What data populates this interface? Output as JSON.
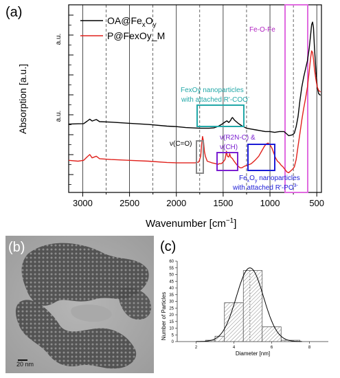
{
  "panel_labels": {
    "a": "(a)",
    "b": "(b)",
    "c": "(c)"
  },
  "panel_a": {
    "legend": [
      {
        "label": "OA@Fe",
        "sub1": "x",
        "mid": "O",
        "sub2": "y",
        "color": "#000000"
      },
      {
        "label": "P@FexOy_M",
        "color": "#e0201b"
      }
    ],
    "ylabel": "Absorption [a.u.]",
    "ytick_labels": [
      "a.u.",
      "a.u."
    ],
    "xlabel": "Wavenumber",
    "xlabel_unit": "[cm",
    "xlabel_sup": "−1",
    "xlabel_close": "]",
    "annotations": {
      "feofe": "Fe-O-Fe",
      "coo_line1": "FexOy nanoparticles",
      "coo_line2": "with attached R'-COO",
      "coo_sup": "-",
      "co": "ν(C=O)",
      "r2nc_line1": "ν(R2N-C) &",
      "r2nc_line2": "ν(CH)",
      "po_line1_a": "Fe",
      "po_line1_b": "x",
      "po_line1_c": "O",
      "po_line1_d": "y",
      "po_line1_e": " nanoparticles",
      "po_line2": "with attached R'-PO",
      "po_sup": "3-"
    },
    "colors": {
      "black": "#000000",
      "red": "#e0201b",
      "teal": "#21a7a7",
      "purple": "#7b1fd1",
      "blue": "#1b1bd6",
      "gray": "#888888",
      "pink": "#e06ae0",
      "magenta_text": "#b020c0"
    }
  },
  "panel_b": {
    "scale_label": "20 nm"
  },
  "chart_data": [
    {
      "type": "line",
      "title": "",
      "xlabel": "Wavenumber [cm−1]",
      "ylabel": "Absorption [a.u.]",
      "xlim": [
        3150,
        450
      ],
      "x_reversed": true,
      "xticks": [
        3000,
        2500,
        2000,
        1500,
        1000,
        500
      ],
      "grid": true,
      "legend_position": "top-left",
      "series": [
        {
          "name": "OA@FexOy",
          "color": "#000000",
          "points": [
            [
              3150,
              2.55
            ],
            [
              3050,
              2.57
            ],
            [
              2990,
              2.58
            ],
            [
              2955,
              2.72
            ],
            [
              2925,
              2.85
            ],
            [
              2900,
              2.74
            ],
            [
              2855,
              2.83
            ],
            [
              2820,
              2.7
            ],
            [
              2700,
              2.67
            ],
            [
              2500,
              2.6
            ],
            [
              2300,
              2.53
            ],
            [
              2100,
              2.43
            ],
            [
              2000,
              2.4
            ],
            [
              1900,
              2.34
            ],
            [
              1750,
              2.3
            ],
            [
              1700,
              2.3
            ],
            [
              1650,
              2.3
            ],
            [
              1600,
              2.32
            ],
            [
              1560,
              2.4
            ],
            [
              1520,
              2.52
            ],
            [
              1480,
              2.68
            ],
            [
              1460,
              2.75
            ],
            [
              1440,
              2.65
            ],
            [
              1420,
              2.78
            ],
            [
              1410,
              2.9
            ],
            [
              1400,
              2.95
            ],
            [
              1380,
              2.8
            ],
            [
              1340,
              2.6
            ],
            [
              1300,
              2.45
            ],
            [
              1250,
              2.3
            ],
            [
              1200,
              2.25
            ],
            [
              1150,
              2.2
            ],
            [
              1100,
              2.15
            ],
            [
              1050,
              2.1
            ],
            [
              1000,
              2.1
            ],
            [
              950,
              2.05
            ],
            [
              900,
              2.1
            ],
            [
              850,
              2.1
            ],
            [
              800,
              1.85
            ],
            [
              760,
              1.9
            ],
            [
              740,
              2.0
            ],
            [
              720,
              2.4
            ],
            [
              700,
              3.0
            ],
            [
              680,
              4.0
            ],
            [
              660,
              4.8
            ],
            [
              640,
              5.4
            ],
            [
              620,
              5.9
            ],
            [
              600,
              6.4
            ],
            [
              580,
              7.2
            ],
            [
              565,
              8.0
            ],
            [
              555,
              8.6
            ],
            [
              545,
              8.75
            ],
            [
              535,
              8.4
            ],
            [
              525,
              7.2
            ],
            [
              510,
              5.9
            ],
            [
              495,
              4.8
            ],
            [
              480,
              4.4
            ],
            [
              460,
              4.3
            ]
          ]
        },
        {
          "name": "P@FexOy_M",
          "color": "#e0201b",
          "points": [
            [
              3150,
              0.35
            ],
            [
              3050,
              0.3
            ],
            [
              2990,
              0.35
            ],
            [
              2955,
              0.55
            ],
            [
              2925,
              0.7
            ],
            [
              2900,
              0.5
            ],
            [
              2855,
              0.6
            ],
            [
              2820,
              0.45
            ],
            [
              2700,
              0.4
            ],
            [
              2500,
              0.35
            ],
            [
              2300,
              0.3
            ],
            [
              2100,
              0.22
            ],
            [
              2000,
              0.2
            ],
            [
              1900,
              0.2
            ],
            [
              1800,
              0.2
            ],
            [
              1760,
              0.25
            ],
            [
              1740,
              0.6
            ],
            [
              1730,
              1.3
            ],
            [
              1720,
              1.8
            ],
            [
              1710,
              1.5
            ],
            [
              1700,
              0.9
            ],
            [
              1690,
              0.6
            ],
            [
              1670,
              0.3
            ],
            [
              1620,
              0.2
            ],
            [
              1580,
              0.15
            ],
            [
              1560,
              0.1
            ],
            [
              1540,
              0.15
            ],
            [
              1520,
              0.15
            ],
            [
              1500,
              0.25
            ],
            [
              1480,
              0.4
            ],
            [
              1465,
              0.9
            ],
            [
              1455,
              0.6
            ],
            [
              1440,
              0.55
            ],
            [
              1430,
              0.75
            ],
            [
              1420,
              0.55
            ],
            [
              1400,
              0.45
            ],
            [
              1390,
              0.35
            ],
            [
              1370,
              0.2
            ],
            [
              1350,
              0.05
            ],
            [
              1320,
              -0.1
            ],
            [
              1300,
              -0.1
            ],
            [
              1270,
              0.0
            ],
            [
              1240,
              0.05
            ],
            [
              1200,
              0.15
            ],
            [
              1160,
              0.35
            ],
            [
              1120,
              0.6
            ],
            [
              1090,
              0.9
            ],
            [
              1060,
              1.2
            ],
            [
              1040,
              1.35
            ],
            [
              1020,
              1.4
            ],
            [
              1000,
              1.3
            ],
            [
              980,
              1.1
            ],
            [
              960,
              0.8
            ],
            [
              940,
              0.5
            ],
            [
              920,
              0.3
            ],
            [
              900,
              0.2
            ],
            [
              880,
              0.05
            ],
            [
              860,
              -0.05
            ],
            [
              840,
              -0.2
            ],
            [
              820,
              -0.35
            ],
            [
              800,
              -0.4
            ],
            [
              780,
              -0.3
            ],
            [
              760,
              -0.2
            ],
            [
              740,
              -0.05
            ],
            [
              720,
              0.4
            ],
            [
              700,
              1.2
            ],
            [
              680,
              2.0
            ],
            [
              660,
              2.8
            ],
            [
              640,
              3.5
            ],
            [
              620,
              4.1
            ],
            [
              600,
              4.8
            ],
            [
              580,
              5.8
            ],
            [
              565,
              6.6
            ],
            [
              555,
              7.0
            ],
            [
              545,
              6.9
            ],
            [
              535,
              6.5
            ],
            [
              525,
              5.9
            ],
            [
              510,
              5.3
            ],
            [
              495,
              4.8
            ],
            [
              480,
              4.6
            ],
            [
              460,
              4.5
            ]
          ]
        }
      ]
    },
    {
      "type": "bar",
      "title": "",
      "xlabel": "Diameter [nm]",
      "ylabel": "Number of Particles",
      "xlim": [
        1,
        9
      ],
      "ylim": [
        0,
        60
      ],
      "xticks": [
        2,
        4,
        6,
        8
      ],
      "yticks": [
        0,
        5,
        10,
        15,
        20,
        25,
        30,
        35,
        40,
        45,
        50,
        55,
        60
      ],
      "bins": [
        {
          "x0": 2.5,
          "x1": 3.0,
          "count": 1
        },
        {
          "x0": 3.0,
          "x1": 3.5,
          "count": 4
        },
        {
          "x0": 3.5,
          "x1": 4.5,
          "count": 29
        },
        {
          "x0": 4.5,
          "x1": 5.5,
          "count": 53
        },
        {
          "x0": 5.5,
          "x1": 6.5,
          "count": 11
        },
        {
          "x0": 6.5,
          "x1": 7.5,
          "count": 1
        }
      ],
      "fit": {
        "type": "gaussian",
        "mean": 4.85,
        "sigma": 0.72,
        "peak": 55
      },
      "mean_line": 4.85
    }
  ]
}
